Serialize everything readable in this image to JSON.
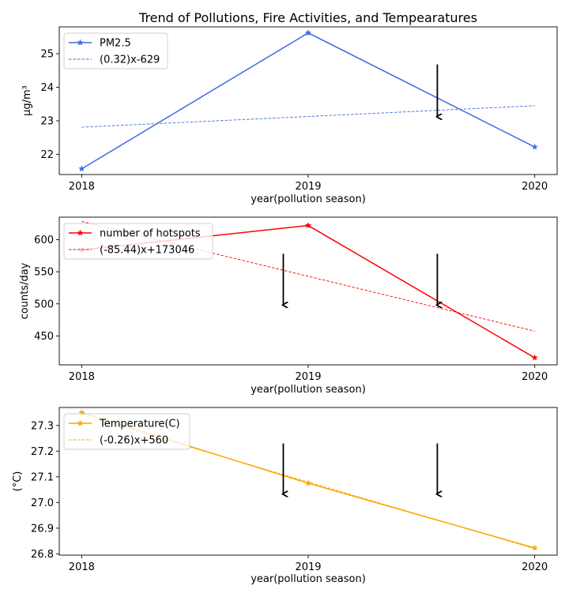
{
  "title": "Trend of Pollutions, Fire Activities, and Tempearatures",
  "colors": {
    "pm": "#4169E1",
    "fire": "#FF0000",
    "temp": "#FFA500"
  },
  "chart_data": [
    {
      "type": "line",
      "x": [
        2018,
        2019,
        2020
      ],
      "xlabel": "year(pollution season)",
      "ylabel": "µg/m³",
      "ylim": [
        21.4,
        25.8
      ],
      "yticks": [
        22,
        23,
        24,
        25
      ],
      "ytick_labels": [
        "22",
        "23",
        "24",
        "25"
      ],
      "series": [
        {
          "name": "PM2.5",
          "values": [
            21.57,
            25.62,
            22.22
          ],
          "style": "solid-star"
        },
        {
          "name": "(0.32)x-629",
          "values": [
            22.81,
            23.13,
            23.45
          ],
          "style": "dashed"
        }
      ],
      "arrows": [
        {
          "x": 2019.57,
          "y_from": 24.68,
          "y_to": 23.1
        }
      ]
    },
    {
      "type": "line",
      "x": [
        2018,
        2019,
        2020
      ],
      "xlabel": "year(pollution season)",
      "ylabel": "counts/day",
      "ylim": [
        405,
        635
      ],
      "yticks": [
        450,
        500,
        550,
        600
      ],
      "ytick_labels": [
        "450",
        "500",
        "550",
        "600"
      ],
      "series": [
        {
          "name": "number of hotspots",
          "values": [
            584,
            622,
            416
          ],
          "style": "solid-star"
        },
        {
          "name": "(-85.44)x+173046",
          "values": [
            628.4,
            542.9,
            457.5
          ],
          "style": "dashed"
        }
      ],
      "arrows": [
        {
          "x": 2018.89,
          "y_from": 578,
          "y_to": 497
        },
        {
          "x": 2019.57,
          "y_from": 578,
          "y_to": 497
        }
      ]
    },
    {
      "type": "line",
      "x": [
        2018,
        2019,
        2020
      ],
      "xlabel": "year(pollution season)",
      "ylabel": "(°C)",
      "ylim": [
        26.795,
        27.37
      ],
      "yticks": [
        26.8,
        26.9,
        27.0,
        27.1,
        27.2,
        27.3
      ],
      "ytick_labels": [
        "26.8",
        "26.9",
        "27.0",
        "27.1",
        "27.2",
        "27.3"
      ],
      "series": [
        {
          "name": "Temperature(C)",
          "values": [
            27.35,
            27.075,
            26.823
          ],
          "style": "solid-star"
        },
        {
          "name": "(-0.26)x+560",
          "values": [
            27.34,
            27.08,
            26.82
          ],
          "style": "dashed"
        }
      ],
      "arrows": [
        {
          "x": 2018.89,
          "y_from": 27.23,
          "y_to": 27.03
        },
        {
          "x": 2019.57,
          "y_from": 27.23,
          "y_to": 27.03
        }
      ]
    }
  ]
}
